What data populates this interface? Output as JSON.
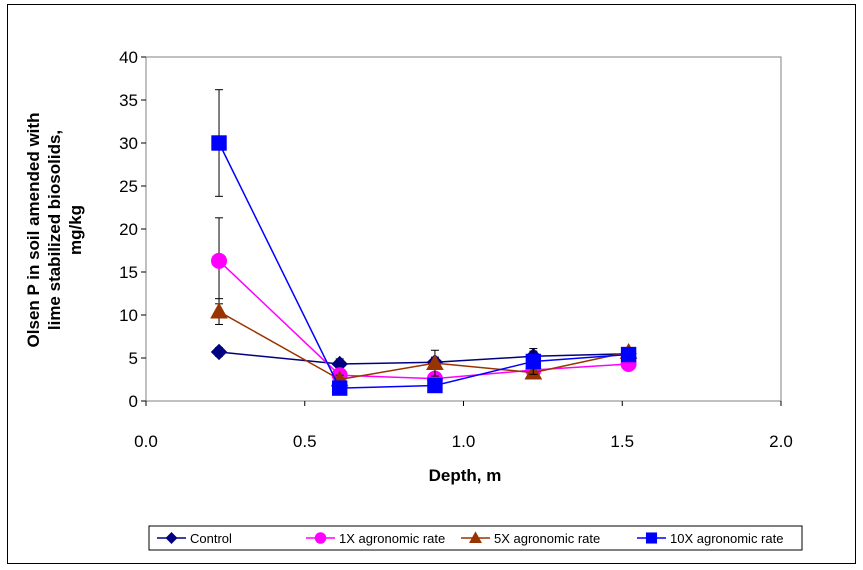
{
  "chart_data": {
    "type": "line",
    "xlabel": "Depth, m",
    "ylabel_lines": [
      "Olsen P in soil amended with",
      "lime stabilized biosolids,",
      "mg/kg"
    ],
    "xlim": [
      0.0,
      2.0
    ],
    "ylim": [
      0,
      40
    ],
    "x_ticks": [
      "0.0",
      "0.5",
      "1.0",
      "1.5",
      "2.0"
    ],
    "y_ticks": [
      "0",
      "5",
      "10",
      "15",
      "20",
      "25",
      "30",
      "35",
      "40"
    ],
    "x_tick_values": [
      0.0,
      0.5,
      1.0,
      1.5,
      2.0
    ],
    "y_tick_values": [
      0,
      5,
      10,
      15,
      20,
      25,
      30,
      35,
      40
    ],
    "legend_position": "bottom",
    "grid": false,
    "series": [
      {
        "name": "Control",
        "color": "#000080",
        "marker": "diamond",
        "x": [
          0.23,
          0.61,
          0.91,
          1.22,
          1.52
        ],
        "y": [
          5.7,
          4.3,
          4.5,
          5.2,
          5.5
        ],
        "error": [
          0.5,
          0.6,
          0.6,
          0.6,
          0.4
        ]
      },
      {
        "name": "1X agronomic rate",
        "color": "#ff00ff",
        "marker": "circle",
        "x": [
          0.23,
          0.61,
          0.91,
          1.22,
          1.52
        ],
        "y": [
          16.3,
          3.0,
          2.6,
          3.6,
          4.3
        ],
        "error": [
          5.0,
          0.5,
          0.4,
          0.5,
          0.5
        ]
      },
      {
        "name": "5X agronomic rate",
        "color": "#993300",
        "marker": "triangle",
        "x": [
          0.23,
          0.61,
          0.91,
          1.22,
          1.52
        ],
        "y": [
          10.4,
          2.5,
          4.4,
          3.3,
          5.7
        ],
        "error": [
          1.5,
          0.5,
          1.5,
          0.6,
          0.5
        ]
      },
      {
        "name": "10X agronomic rate",
        "color": "#0000ff",
        "marker": "square",
        "x": [
          0.23,
          0.61,
          0.91,
          1.22,
          1.52
        ],
        "y": [
          30.0,
          1.5,
          1.8,
          4.6,
          5.4
        ],
        "error": [
          6.2,
          0.5,
          0.5,
          1.5,
          0.5
        ]
      }
    ]
  }
}
